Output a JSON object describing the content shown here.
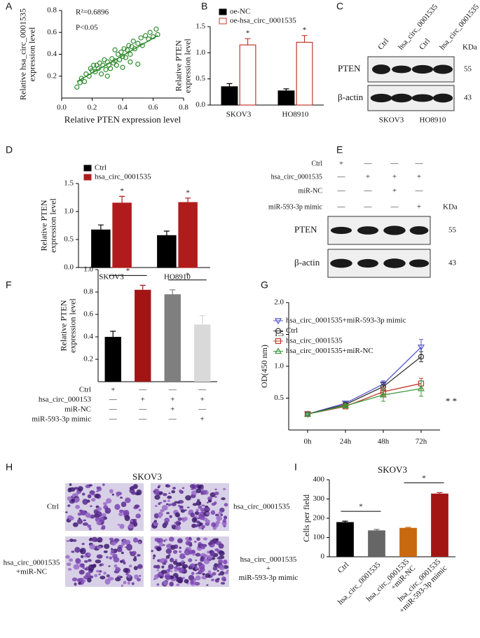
{
  "chart_data": [
    {
      "type": "scatter",
      "panel": "A",
      "xlabel": "Relative PTEN expression level",
      "ylabel": "Relative hsa_circ_0001535\nexpression level",
      "annotations": [
        "R²=0.6896",
        "P<0.05"
      ],
      "color": "#2e8b2e",
      "x": [
        0.1,
        0.12,
        0.13,
        0.15,
        0.16,
        0.18,
        0.19,
        0.2,
        0.21,
        0.22,
        0.23,
        0.24,
        0.25,
        0.26,
        0.27,
        0.28,
        0.29,
        0.3,
        0.31,
        0.32,
        0.33,
        0.34,
        0.35,
        0.36,
        0.37,
        0.38,
        0.39,
        0.4,
        0.41,
        0.42,
        0.43,
        0.44,
        0.45,
        0.46,
        0.47,
        0.48,
        0.5,
        0.52,
        0.53,
        0.55,
        0.57,
        0.58,
        0.6,
        0.62,
        0.63,
        0.3,
        0.45,
        0.4,
        0.35,
        0.5
      ],
      "y": [
        0.1,
        0.14,
        0.18,
        0.15,
        0.22,
        0.2,
        0.27,
        0.25,
        0.3,
        0.24,
        0.3,
        0.27,
        0.32,
        0.22,
        0.3,
        0.35,
        0.26,
        0.33,
        0.3,
        0.27,
        0.36,
        0.32,
        0.34,
        0.3,
        0.4,
        0.35,
        0.42,
        0.38,
        0.45,
        0.37,
        0.44,
        0.48,
        0.4,
        0.47,
        0.52,
        0.45,
        0.5,
        0.55,
        0.48,
        0.57,
        0.54,
        0.6,
        0.56,
        0.63,
        0.58,
        0.2,
        0.33,
        0.28,
        0.44,
        0.31
      ],
      "fit": {
        "x": [
          0.1,
          0.63
        ],
        "y": [
          0.15,
          0.57
        ]
      },
      "xlim": [
        0,
        0.8
      ],
      "xticks": [
        {
          "value": 0,
          "label": "0.0"
        },
        0.2,
        0.4,
        0.6,
        0.8
      ],
      "ylim": [
        0,
        0.8
      ],
      "yticks": [
        0.2,
        0.4,
        0.6,
        0.8
      ]
    },
    {
      "type": "bar",
      "panel": "B",
      "ylabel": "Relative PTEN\nexpression level",
      "categories": [
        "SKOV3",
        "HO8910"
      ],
      "series": [
        {
          "name": "oe-NC",
          "color": "#000000",
          "fill": "#000000",
          "values": [
            0.35,
            0.27
          ],
          "errors": [
            0.06,
            0.04
          ]
        },
        {
          "name": "oe-hsa_circ_0001535",
          "color": "#c0392b",
          "fill": "#ffffff",
          "values": [
            1.15,
            1.2
          ],
          "errors": [
            0.12,
            0.13
          ]
        }
      ],
      "annotations": [
        "*",
        "*"
      ],
      "ylim": [
        0,
        1.5
      ],
      "yticks": [
        {
          "value": 0,
          "label": "0.0"
        },
        0.5,
        {
          "value": 1,
          "label": "1.0"
        },
        1.5
      ]
    },
    {
      "type": "bar",
      "panel": "D",
      "ylabel": "Relative PTEN\nexpression level",
      "categories": [
        "SKOV3",
        "HO8910"
      ],
      "series": [
        {
          "name": "Ctrl",
          "color": "#000000",
          "fill": "#000000",
          "values": [
            0.67,
            0.57
          ],
          "errors": [
            0.09,
            0.08
          ]
        },
        {
          "name": "hsa_circ_0001535",
          "color": "#b01c1c",
          "fill": "#b01c1c",
          "values": [
            1.15,
            1.16
          ],
          "errors": [
            0.12,
            0.08
          ]
        }
      ],
      "annotations": [
        "*",
        "*"
      ],
      "ylim": [
        0,
        1.5
      ],
      "yticks": [
        {
          "value": 0,
          "label": "0.0"
        },
        0.5,
        {
          "value": 1,
          "label": "1.0"
        },
        1.5
      ]
    },
    {
      "type": "bar",
      "panel": "F",
      "ylabel": "Relative PTEN\nexpression level",
      "categories": [
        null,
        null,
        null,
        null
      ],
      "values": [
        0.4,
        0.82,
        0.78,
        0.51
      ],
      "errors": [
        0.05,
        0.04,
        0.04,
        0.08
      ],
      "colors": [
        "#000000",
        "#a31515",
        "#7f7f7f",
        "#d9d9d9"
      ],
      "annotations": [
        "*",
        "*"
      ],
      "treatments": [
        {
          "name": "Ctrl",
          "signs": [
            "+",
            "—",
            "—",
            "—"
          ]
        },
        {
          "name": "hsa_circ_000153",
          "signs": [
            "—",
            "+",
            "+",
            "+"
          ]
        },
        {
          "name": "miR-NC",
          "signs": [
            "—",
            "—",
            "+",
            "—"
          ]
        },
        {
          "name": "miR-593-3p mimic",
          "signs": [
            "—",
            "—",
            "—",
            "+"
          ]
        }
      ],
      "ylim": [
        0,
        1
      ],
      "yticks": [
        0.2,
        0.4,
        0.6,
        0.8,
        {
          "value": 1,
          "label": "1.0"
        }
      ]
    },
    {
      "type": "line",
      "panel": "G",
      "ylabel": "OD(450 nm)",
      "categories": [
        "0h",
        "24h",
        "48h",
        "72h"
      ],
      "series": [
        {
          "name": "hsa_circ_0001535+miR-593-3p mimic",
          "color": "#5555cc",
          "marker": "triangle-down",
          "values": [
            0.25,
            0.42,
            0.72,
            1.3
          ],
          "errors": [
            0.02,
            0.02,
            0.05,
            0.12
          ]
        },
        {
          "name": "Ctrl",
          "color": "#333333",
          "marker": "circle",
          "values": [
            0.25,
            0.4,
            0.68,
            1.15
          ],
          "errors": [
            0.02,
            0.02,
            0.06,
            0.08
          ]
        },
        {
          "name": "hsa_circ_0001535",
          "color": "#c0392b",
          "marker": "square",
          "values": [
            0.25,
            0.37,
            0.6,
            0.73
          ],
          "errors": [
            0.02,
            0.02,
            0.07,
            0.08
          ]
        },
        {
          "name": "hsa_circ_0001535+miR-NC",
          "color": "#3a9a3a",
          "marker": "triangle-up",
          "values": [
            0.25,
            0.38,
            0.55,
            0.65
          ],
          "errors": [
            0.02,
            0.02,
            0.1,
            0.12
          ]
        }
      ],
      "annotations": [
        "* *"
      ],
      "ylim": [
        0,
        2
      ],
      "yticks": [
        0.5,
        {
          "value": 1,
          "label": "1.0"
        },
        1.5,
        {
          "value": 2,
          "label": "2.0"
        }
      ]
    },
    {
      "type": "bar",
      "panel": "I",
      "title": "SKOV3",
      "ylabel": "Cells  per field",
      "categories": [
        "Ctrl",
        "hsa_circ_0001535",
        "hsa_circ_0001535\n+miR-NC",
        "hsa_circ_0001535\n+miR-593-3p mimic"
      ],
      "values": [
        180,
        137,
        150,
        328
      ],
      "errors": [
        5,
        5,
        3,
        5
      ],
      "colors": [
        "#000000",
        "#666666",
        "#c8680f",
        "#a31515"
      ],
      "annotations": [
        "*",
        "*"
      ],
      "ylim": [
        0,
        400
      ],
      "yticks": [
        0,
        100,
        200,
        300,
        400
      ]
    }
  ],
  "blots": [
    {
      "panel": "C",
      "columns": [
        "Ctrl",
        "hsa_circ_0001535",
        "Ctrl",
        "hsa_circ_0001535"
      ],
      "unit": "KDa",
      "rows": [
        {
          "name": "PTEN",
          "kda": 55
        },
        {
          "name": "β-actin",
          "kda": 43
        }
      ],
      "groups": [
        "SKOV3",
        "HO8910"
      ]
    },
    {
      "panel": "E",
      "unit": "KDa",
      "conditions": [
        {
          "name": "Ctrl",
          "signs": [
            "+",
            "—",
            "—",
            "—"
          ]
        },
        {
          "name": "hsa_circ_0001535",
          "signs": [
            "—",
            "+",
            "+",
            "+"
          ]
        },
        {
          "name": "miR-NC",
          "signs": [
            "—",
            "—",
            "+",
            "—"
          ]
        },
        {
          "name": "miR-593-3p mimic",
          "signs": [
            "—",
            "—",
            "—",
            "+"
          ]
        }
      ],
      "rows": [
        {
          "name": "PTEN",
          "kda": 55
        },
        {
          "name": "β-actin",
          "kda": 43
        }
      ]
    }
  ],
  "micrographs": {
    "panel": "H",
    "title": "SKOV3",
    "labels": [
      "Ctrl",
      "hsa_circ_0001535",
      "hsa_circ_0001535\n+miR-NC",
      "hsa_circ_0001535\n+\nmiR-593-3p mimic"
    ]
  }
}
